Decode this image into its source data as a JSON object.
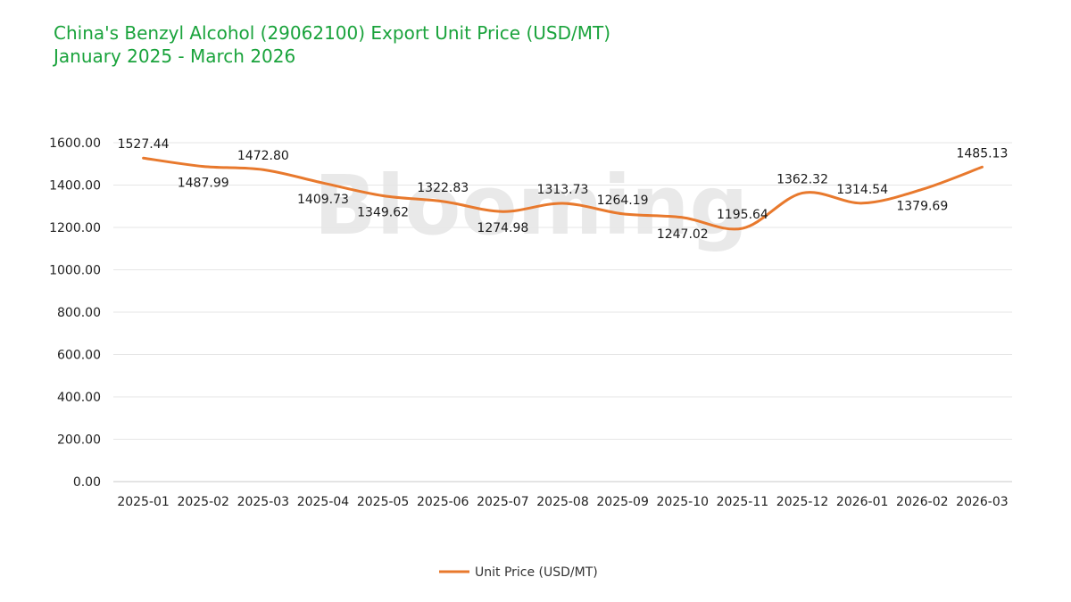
{
  "title": {
    "line1": "China's Benzyl Alcohol (29062100) Export Unit Price (USD/MT)",
    "line2": "January 2025 - March 2026"
  },
  "watermark": "Blooming",
  "colors": {
    "title": "#1aa33c",
    "series": "#e8792d",
    "grid": "#e6e6e6"
  },
  "chart_data": {
    "type": "line",
    "categories": [
      "2025-01",
      "2025-02",
      "2025-03",
      "2025-04",
      "2025-05",
      "2025-06",
      "2025-07",
      "2025-08",
      "2025-09",
      "2025-10",
      "2025-11",
      "2025-12",
      "2026-01",
      "2026-02",
      "2026-03"
    ],
    "series": [
      {
        "name": "Unit Price (USD/MT)",
        "values": [
          1527.44,
          1487.99,
          1472.8,
          1409.73,
          1349.62,
          1322.83,
          1274.98,
          1313.73,
          1264.19,
          1247.02,
          1195.64,
          1362.32,
          1314.54,
          1379.69,
          1485.13
        ],
        "labels": [
          "1527.44",
          "1487.99",
          "1472.80",
          "1409.73",
          "1349.62",
          "1322.83",
          "1274.98",
          "1313.73",
          "1264.19",
          "1247.02",
          "1195.64",
          "1362.32",
          "1314.54",
          "1379.69",
          "1485.13"
        ]
      }
    ],
    "yticks": [
      "0.00",
      "200.00",
      "400.00",
      "600.00",
      "800.00",
      "1000.00",
      "1200.00",
      "1400.00",
      "1600.00"
    ],
    "ylim": [
      0,
      1600
    ],
    "grid": true,
    "legend_position": "bottom-center"
  }
}
